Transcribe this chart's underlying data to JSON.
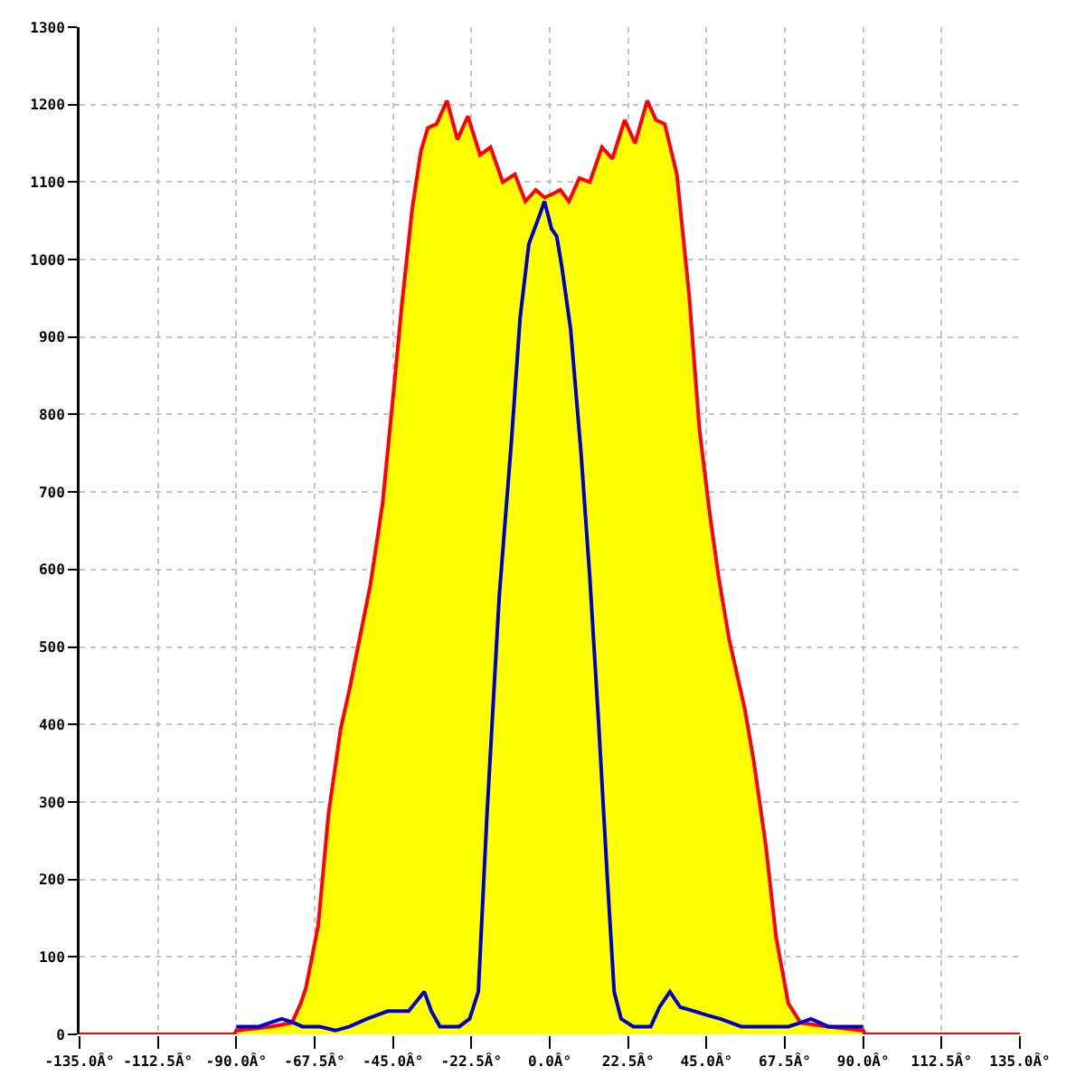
{
  "chart_data": {
    "type": "line",
    "xlim": [
      -135,
      135
    ],
    "xticks": [
      {
        "value": -135,
        "label": "-135.0Â°"
      },
      {
        "value": -112.5,
        "label": "-112.5Â°"
      },
      {
        "value": -90,
        "label": "-90.0Â°"
      },
      {
        "value": -67.5,
        "label": "-67.5Â°"
      },
      {
        "value": -45,
        "label": "-45.0Â°"
      },
      {
        "value": -22.5,
        "label": "-22.5Â°"
      },
      {
        "value": 0,
        "label": "0.0Â°"
      },
      {
        "value": 22.5,
        "label": "22.5Â°"
      },
      {
        "value": 45,
        "label": "45.0Â°"
      },
      {
        "value": 67.5,
        "label": "67.5Â°"
      },
      {
        "value": 90,
        "label": "90.0Â°"
      },
      {
        "value": 112.5,
        "label": "112.5Â°"
      },
      {
        "value": 135,
        "label": "135.0Â°"
      }
    ],
    "ylim": [
      0,
      1300
    ],
    "yticks": [
      0,
      100,
      200,
      300,
      400,
      500,
      600,
      700,
      800,
      900,
      1000,
      1100,
      1200,
      1300
    ],
    "grid": true,
    "x": [
      -135,
      -90.5,
      -90,
      -80,
      -74,
      -71.5,
      -70,
      -66.5,
      -63.5,
      -60,
      -57.5,
      -51.5,
      -48,
      -44.5,
      -42.5,
      -39.5,
      -37,
      -35,
      -32.5,
      -29.5,
      -26.5,
      -23.5,
      -20,
      -17,
      -13.5,
      -10,
      -7,
      -4,
      -1.5,
      1,
      3,
      5.5,
      8.5,
      11.5,
      15,
      18,
      21.5,
      24.5,
      28,
      30.5,
      33,
      36.5,
      40,
      43,
      46,
      48.5,
      51.5,
      56,
      58.5,
      62,
      65,
      68.5,
      72,
      80,
      90,
      90.5,
      135
    ],
    "series": [
      {
        "type": "area",
        "color": "#ffff00",
        "x": [
          -90.5,
          -90,
          -80,
          -74,
          -71.5,
          -70,
          -66.5,
          -63.5,
          -60,
          -57.5,
          -51.5,
          -48,
          -44.5,
          -42.5,
          -39.5,
          -37,
          -35,
          -32.5,
          -29.5,
          -26.5,
          -23.5,
          -20,
          -17,
          -13.5,
          -10,
          -7,
          -4,
          -1.5,
          1,
          3,
          5.5,
          8.5,
          11.5,
          15,
          18,
          21.5,
          24.5,
          28,
          30.5,
          33,
          36.5,
          40,
          43,
          46,
          48.5,
          51.5,
          56,
          58.5,
          62,
          65,
          68.5,
          72,
          80,
          90,
          90.5
        ],
        "values": [
          0,
          5,
          10,
          15,
          40,
          60,
          140,
          285,
          395,
          445,
          580,
          685,
          845,
          940,
          1065,
          1140,
          1170,
          1175,
          1205,
          1155,
          1185,
          1135,
          1145,
          1100,
          1110,
          1075,
          1090,
          1080,
          1085,
          1090,
          1075,
          1105,
          1100,
          1145,
          1130,
          1180,
          1150,
          1205,
          1180,
          1175,
          1110,
          955,
          780,
          670,
          590,
          510,
          420,
          355,
          245,
          125,
          40,
          15,
          10,
          5,
          0
        ]
      },
      {
        "color": "#ff0000",
        "values": [
          0,
          0,
          5,
          10,
          15,
          40,
          60,
          140,
          285,
          395,
          445,
          580,
          685,
          845,
          940,
          1065,
          1140,
          1170,
          1175,
          1205,
          1155,
          1185,
          1135,
          1145,
          1100,
          1110,
          1075,
          1090,
          1080,
          1085,
          1090,
          1075,
          1105,
          1100,
          1145,
          1130,
          1180,
          1150,
          1205,
          1180,
          1175,
          1110,
          955,
          780,
          670,
          590,
          510,
          420,
          355,
          245,
          125,
          40,
          15,
          10,
          5,
          0,
          0
        ]
      },
      {
        "color": "#0000cc",
        "x": [
          -90,
          -83.5,
          -77,
          -73.5,
          -71,
          -66,
          -61.5,
          -57.5,
          -52.5,
          -46.5,
          -40.5,
          -36,
          -34,
          -31.5,
          -26,
          -23,
          -20.5,
          -18,
          -14.5,
          -11,
          -8.5,
          -6,
          -3.5,
          -1.5,
          0.5,
          2,
          3.5,
          6,
          9,
          11.5,
          14,
          16.5,
          18.5,
          20.5,
          24,
          29,
          31.5,
          34.5,
          37.5,
          41.5,
          45,
          49,
          55,
          62,
          68.5,
          72,
          75,
          80,
          90
        ],
        "values": [
          10,
          10,
          20,
          15,
          10,
          10,
          5,
          10,
          20,
          30,
          30,
          55,
          30,
          10,
          10,
          20,
          55,
          285,
          565,
          765,
          925,
          1020,
          1050,
          1075,
          1040,
          1030,
          990,
          910,
          750,
          590,
          405,
          205,
          55,
          20,
          10,
          10,
          35,
          55,
          35,
          30,
          25,
          20,
          10,
          10,
          10,
          15,
          20,
          10,
          10
        ]
      }
    ]
  }
}
